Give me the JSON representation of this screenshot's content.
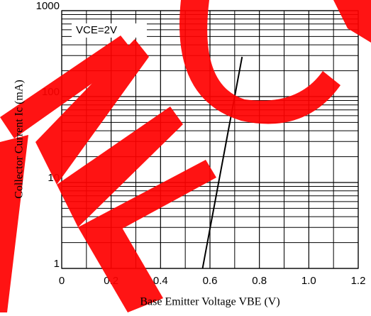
{
  "chart_data": {
    "type": "line",
    "x_label": "Base Emitter Voltage VBE (V)",
    "y_label": "Collector Current Ic (mA)",
    "annotation": "VCE=2V",
    "x": [
      0.57,
      0.73
    ],
    "series": [
      {
        "name": "VCE=2V",
        "color": "#000000",
        "values": [
          1,
          290
        ]
      }
    ],
    "xlim": [
      0,
      1.2
    ],
    "xticks": [
      0,
      0.2,
      0.4,
      0.6,
      0.8,
      {
        "value": 1,
        "label": "1.0"
      },
      1.2
    ],
    "ylim": [
      1,
      1000
    ],
    "yticks": [
      1,
      10,
      100,
      1000
    ],
    "yscale": "log",
    "grid": true
  }
}
